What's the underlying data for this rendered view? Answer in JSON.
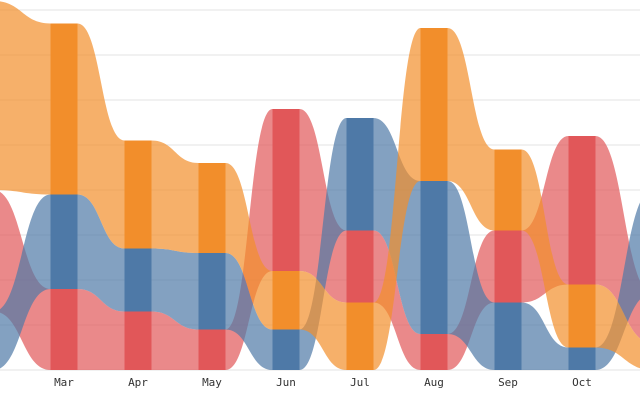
{
  "chart_data": {
    "type": "bar",
    "stacked": true,
    "style": "stacked bars joined by smoothed ribbons",
    "categories": [
      "Mar",
      "Apr",
      "May",
      "Jun",
      "Jul",
      "Aug",
      "Sep",
      "Oct"
    ],
    "edge_left": {
      "red": 27,
      "blue": 13,
      "orange": 42
    },
    "edge_right": {
      "red": 11,
      "blue": 23,
      "orange": 6
    },
    "ylim": [
      0,
      80
    ],
    "grid": true,
    "series": [
      {
        "key": "red",
        "color": "#e15759",
        "values": [
          18,
          13,
          9,
          36,
          16,
          8,
          16,
          33
        ]
      },
      {
        "key": "blue",
        "color": "#4e79a7",
        "values": [
          21,
          14,
          17,
          9,
          25,
          34,
          15,
          5
        ]
      },
      {
        "key": "orange",
        "color": "#f28e2b",
        "values": [
          38,
          24,
          20,
          13,
          15,
          34,
          18,
          14
        ]
      }
    ]
  }
}
